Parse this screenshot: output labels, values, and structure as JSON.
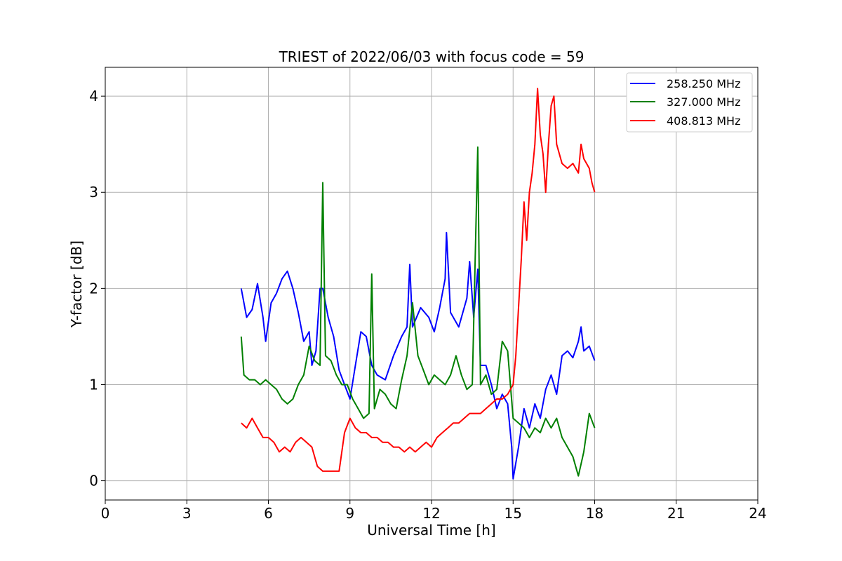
{
  "chart_data": {
    "type": "line",
    "title": "TRIEST of 2022/06/03 with focus code = 59",
    "xlabel": "Universal Time [h]",
    "ylabel": "Y-factor [dB]",
    "xlim": [
      0,
      24
    ],
    "ylim": [
      -0.2,
      4.3
    ],
    "xticks": [
      0,
      3,
      6,
      9,
      12,
      15,
      18,
      21,
      24
    ],
    "yticks": [
      0,
      1,
      2,
      3,
      4
    ],
    "grid": true,
    "legend_position": "top-right",
    "series": [
      {
        "name": "258.250 MHz",
        "color": "#0000ff",
        "points": [
          [
            5.0,
            2.0
          ],
          [
            5.2,
            1.7
          ],
          [
            5.4,
            1.78
          ],
          [
            5.6,
            2.05
          ],
          [
            5.8,
            1.7
          ],
          [
            5.9,
            1.45
          ],
          [
            6.1,
            1.85
          ],
          [
            6.3,
            1.95
          ],
          [
            6.5,
            2.1
          ],
          [
            6.7,
            2.18
          ],
          [
            6.9,
            2.0
          ],
          [
            7.1,
            1.75
          ],
          [
            7.3,
            1.45
          ],
          [
            7.5,
            1.55
          ],
          [
            7.6,
            1.2
          ],
          [
            7.75,
            1.35
          ],
          [
            7.9,
            2.0
          ],
          [
            8.0,
            2.0
          ],
          [
            8.2,
            1.7
          ],
          [
            8.4,
            1.5
          ],
          [
            8.6,
            1.15
          ],
          [
            8.8,
            1.0
          ],
          [
            9.0,
            0.85
          ],
          [
            9.2,
            1.2
          ],
          [
            9.4,
            1.55
          ],
          [
            9.6,
            1.5
          ],
          [
            9.8,
            1.2
          ],
          [
            10.0,
            1.1
          ],
          [
            10.3,
            1.05
          ],
          [
            10.6,
            1.3
          ],
          [
            10.9,
            1.5
          ],
          [
            11.1,
            1.6
          ],
          [
            11.2,
            2.25
          ],
          [
            11.3,
            1.6
          ],
          [
            11.6,
            1.8
          ],
          [
            11.9,
            1.7
          ],
          [
            12.1,
            1.55
          ],
          [
            12.3,
            1.8
          ],
          [
            12.5,
            2.1
          ],
          [
            12.55,
            2.58
          ],
          [
            12.7,
            1.75
          ],
          [
            13.0,
            1.6
          ],
          [
            13.3,
            1.9
          ],
          [
            13.4,
            2.28
          ],
          [
            13.55,
            1.7
          ],
          [
            13.7,
            2.2
          ],
          [
            13.8,
            1.2
          ],
          [
            14.0,
            1.2
          ],
          [
            14.2,
            1.0
          ],
          [
            14.4,
            0.75
          ],
          [
            14.6,
            0.9
          ],
          [
            14.8,
            0.8
          ],
          [
            14.95,
            0.35
          ],
          [
            15.0,
            0.02
          ],
          [
            15.2,
            0.35
          ],
          [
            15.4,
            0.75
          ],
          [
            15.6,
            0.55
          ],
          [
            15.8,
            0.8
          ],
          [
            16.0,
            0.65
          ],
          [
            16.2,
            0.95
          ],
          [
            16.4,
            1.1
          ],
          [
            16.6,
            0.9
          ],
          [
            16.8,
            1.3
          ],
          [
            17.0,
            1.35
          ],
          [
            17.2,
            1.28
          ],
          [
            17.4,
            1.45
          ],
          [
            17.5,
            1.6
          ],
          [
            17.6,
            1.35
          ],
          [
            17.8,
            1.4
          ],
          [
            18.0,
            1.25
          ]
        ]
      },
      {
        "name": "327.000 MHz",
        "color": "#008000",
        "points": [
          [
            5.0,
            1.5
          ],
          [
            5.1,
            1.1
          ],
          [
            5.3,
            1.05
          ],
          [
            5.5,
            1.05
          ],
          [
            5.7,
            1.0
          ],
          [
            5.9,
            1.05
          ],
          [
            6.1,
            1.0
          ],
          [
            6.3,
            0.95
          ],
          [
            6.5,
            0.85
          ],
          [
            6.7,
            0.8
          ],
          [
            6.9,
            0.85
          ],
          [
            7.1,
            1.0
          ],
          [
            7.3,
            1.1
          ],
          [
            7.5,
            1.4
          ],
          [
            7.7,
            1.25
          ],
          [
            7.9,
            1.2
          ],
          [
            8.0,
            3.1
          ],
          [
            8.1,
            1.3
          ],
          [
            8.3,
            1.25
          ],
          [
            8.5,
            1.1
          ],
          [
            8.7,
            1.0
          ],
          [
            8.9,
            1.0
          ],
          [
            9.1,
            0.85
          ],
          [
            9.3,
            0.75
          ],
          [
            9.5,
            0.65
          ],
          [
            9.7,
            0.7
          ],
          [
            9.8,
            2.15
          ],
          [
            9.9,
            0.75
          ],
          [
            10.1,
            0.95
          ],
          [
            10.3,
            0.9
          ],
          [
            10.5,
            0.8
          ],
          [
            10.7,
            0.75
          ],
          [
            10.9,
            1.05
          ],
          [
            11.1,
            1.3
          ],
          [
            11.3,
            1.85
          ],
          [
            11.5,
            1.3
          ],
          [
            11.7,
            1.15
          ],
          [
            11.9,
            1.0
          ],
          [
            12.1,
            1.1
          ],
          [
            12.3,
            1.05
          ],
          [
            12.5,
            1.0
          ],
          [
            12.7,
            1.1
          ],
          [
            12.9,
            1.3
          ],
          [
            13.1,
            1.1
          ],
          [
            13.3,
            0.95
          ],
          [
            13.5,
            1.0
          ],
          [
            13.7,
            3.47
          ],
          [
            13.8,
            1.0
          ],
          [
            14.0,
            1.1
          ],
          [
            14.2,
            0.9
          ],
          [
            14.4,
            0.95
          ],
          [
            14.6,
            1.45
          ],
          [
            14.8,
            1.35
          ],
          [
            15.0,
            0.65
          ],
          [
            15.2,
            0.6
          ],
          [
            15.4,
            0.55
          ],
          [
            15.6,
            0.45
          ],
          [
            15.8,
            0.55
          ],
          [
            16.0,
            0.5
          ],
          [
            16.2,
            0.65
          ],
          [
            16.4,
            0.55
          ],
          [
            16.6,
            0.65
          ],
          [
            16.8,
            0.45
          ],
          [
            17.0,
            0.35
          ],
          [
            17.2,
            0.25
          ],
          [
            17.4,
            0.05
          ],
          [
            17.6,
            0.3
          ],
          [
            17.8,
            0.7
          ],
          [
            18.0,
            0.55
          ]
        ]
      },
      {
        "name": "408.813 MHz",
        "color": "#ff0000",
        "points": [
          [
            5.0,
            0.6
          ],
          [
            5.2,
            0.55
          ],
          [
            5.4,
            0.65
          ],
          [
            5.6,
            0.55
          ],
          [
            5.8,
            0.45
          ],
          [
            6.0,
            0.45
          ],
          [
            6.2,
            0.4
          ],
          [
            6.4,
            0.3
          ],
          [
            6.6,
            0.35
          ],
          [
            6.8,
            0.3
          ],
          [
            7.0,
            0.4
          ],
          [
            7.2,
            0.45
          ],
          [
            7.4,
            0.4
          ],
          [
            7.6,
            0.35
          ],
          [
            7.8,
            0.15
          ],
          [
            8.0,
            0.1
          ],
          [
            8.2,
            0.1
          ],
          [
            8.4,
            0.1
          ],
          [
            8.6,
            0.1
          ],
          [
            8.8,
            0.5
          ],
          [
            9.0,
            0.65
          ],
          [
            9.2,
            0.55
          ],
          [
            9.4,
            0.5
          ],
          [
            9.6,
            0.5
          ],
          [
            9.8,
            0.45
          ],
          [
            10.0,
            0.45
          ],
          [
            10.2,
            0.4
          ],
          [
            10.4,
            0.4
          ],
          [
            10.6,
            0.35
          ],
          [
            10.8,
            0.35
          ],
          [
            11.0,
            0.3
          ],
          [
            11.2,
            0.35
          ],
          [
            11.4,
            0.3
          ],
          [
            11.6,
            0.35
          ],
          [
            11.8,
            0.4
          ],
          [
            12.0,
            0.35
          ],
          [
            12.2,
            0.45
          ],
          [
            12.4,
            0.5
          ],
          [
            12.6,
            0.55
          ],
          [
            12.8,
            0.6
          ],
          [
            13.0,
            0.6
          ],
          [
            13.2,
            0.65
          ],
          [
            13.4,
            0.7
          ],
          [
            13.6,
            0.7
          ],
          [
            13.8,
            0.7
          ],
          [
            14.0,
            0.75
          ],
          [
            14.2,
            0.8
          ],
          [
            14.4,
            0.85
          ],
          [
            14.6,
            0.85
          ],
          [
            14.8,
            0.9
          ],
          [
            15.0,
            1.0
          ],
          [
            15.1,
            1.3
          ],
          [
            15.2,
            1.8
          ],
          [
            15.3,
            2.3
          ],
          [
            15.4,
            2.9
          ],
          [
            15.5,
            2.5
          ],
          [
            15.6,
            3.0
          ],
          [
            15.7,
            3.2
          ],
          [
            15.8,
            3.5
          ],
          [
            15.9,
            4.08
          ],
          [
            16.0,
            3.6
          ],
          [
            16.1,
            3.4
          ],
          [
            16.2,
            3.0
          ],
          [
            16.3,
            3.5
          ],
          [
            16.4,
            3.9
          ],
          [
            16.5,
            4.0
          ],
          [
            16.6,
            3.5
          ],
          [
            16.8,
            3.3
          ],
          [
            17.0,
            3.25
          ],
          [
            17.2,
            3.3
          ],
          [
            17.4,
            3.2
          ],
          [
            17.5,
            3.5
          ],
          [
            17.6,
            3.35
          ],
          [
            17.8,
            3.25
          ],
          [
            17.9,
            3.1
          ],
          [
            18.0,
            3.0
          ]
        ]
      }
    ]
  }
}
